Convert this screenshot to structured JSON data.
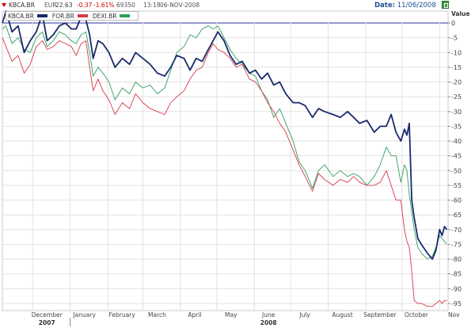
{
  "header": {
    "symbol": "KBCA.BR",
    "currency": "EUR",
    "last": "22.63",
    "change": "-0.37",
    "change_pct": "-1.61%",
    "volume": "69350",
    "time": "13:18",
    "date": "06-NOV-2008",
    "date_label": "Date:",
    "date_value": "11/06/2008",
    "down_color": "#cc0000"
  },
  "chart_data": {
    "type": "line",
    "title": "",
    "xlabel": "",
    "ylabel": "Value",
    "ylim": [
      -97,
      5
    ],
    "yticks": [
      0,
      -5,
      -10,
      -15,
      -20,
      -25,
      -30,
      -35,
      -40,
      -45,
      -50,
      -55,
      -60,
      -65,
      -70,
      -75,
      -80,
      -85,
      -90,
      -95
    ],
    "x_range": [
      "2007-11-06",
      "2008-11-08"
    ],
    "x_ticks": [
      {
        "label": "December",
        "date": "2007-12-01"
      },
      {
        "label": "January",
        "date": "2008-01-01"
      },
      {
        "label": "February",
        "date": "2008-02-01"
      },
      {
        "label": "March",
        "date": "2008-03-01"
      },
      {
        "label": "April",
        "date": "2008-04-01"
      },
      {
        "label": "May",
        "date": "2008-05-01"
      },
      {
        "label": "June",
        "date": "2008-06-01"
      },
      {
        "label": "July",
        "date": "2008-07-01"
      },
      {
        "label": "August",
        "date": "2008-08-01"
      },
      {
        "label": "September",
        "date": "2008-09-01"
      },
      {
        "label": "October",
        "date": "2008-10-01"
      },
      {
        "label": "Nov",
        "date": "2008-11-01"
      }
    ],
    "year_labels": [
      {
        "label": "2007",
        "date": "2007-12-01"
      },
      {
        "label": "2008",
        "date": "2008-06-01"
      }
    ],
    "grid": true,
    "legend_position": "top-left",
    "series": [
      {
        "name": "KBCA.BR",
        "color": "#1a2a6c",
        "points": [
          [
            "2007-11-06",
            0
          ],
          [
            "2007-11-09",
            4
          ],
          [
            "2007-11-14",
            -3
          ],
          [
            "2007-11-19",
            -1
          ],
          [
            "2007-11-24",
            -10
          ],
          [
            "2007-11-29",
            -6
          ],
          [
            "2007-12-04",
            -3
          ],
          [
            "2007-12-09",
            3
          ],
          [
            "2007-12-13",
            -6
          ],
          [
            "2007-12-18",
            -4
          ],
          [
            "2007-12-23",
            -1
          ],
          [
            "2007-12-28",
            0
          ],
          [
            "2008-01-02",
            -2
          ],
          [
            "2008-01-06",
            -2
          ],
          [
            "2008-01-10",
            2
          ],
          [
            "2008-01-14",
            1
          ],
          [
            "2008-01-17",
            -4
          ],
          [
            "2008-01-20",
            -12
          ],
          [
            "2008-01-24",
            -6
          ],
          [
            "2008-01-28",
            -7
          ],
          [
            "2008-02-02",
            -10
          ],
          [
            "2008-02-07",
            -15
          ],
          [
            "2008-02-13",
            -12
          ],
          [
            "2008-02-19",
            -14
          ],
          [
            "2008-02-24",
            -10
          ],
          [
            "2008-03-01",
            -12
          ],
          [
            "2008-03-07",
            -14
          ],
          [
            "2008-03-13",
            -17
          ],
          [
            "2008-03-19",
            -18
          ],
          [
            "2008-03-24",
            -15
          ],
          [
            "2008-03-29",
            -11
          ],
          [
            "2008-04-04",
            -12
          ],
          [
            "2008-04-09",
            -16
          ],
          [
            "2008-04-14",
            -12
          ],
          [
            "2008-04-19",
            -13
          ],
          [
            "2008-04-24",
            -9
          ],
          [
            "2008-04-28",
            -6
          ],
          [
            "2008-05-02",
            -3
          ],
          [
            "2008-05-07",
            -6
          ],
          [
            "2008-05-12",
            -11
          ],
          [
            "2008-05-17",
            -14
          ],
          [
            "2008-05-22",
            -13
          ],
          [
            "2008-05-28",
            -17
          ],
          [
            "2008-06-02",
            -16
          ],
          [
            "2008-06-07",
            -19
          ],
          [
            "2008-06-12",
            -17
          ],
          [
            "2008-06-17",
            -21
          ],
          [
            "2008-06-22",
            -20
          ],
          [
            "2008-06-27",
            -24
          ],
          [
            "2008-07-03",
            -27
          ],
          [
            "2008-07-08",
            -27
          ],
          [
            "2008-07-13",
            -28
          ],
          [
            "2008-07-19",
            -32
          ],
          [
            "2008-07-24",
            -29
          ],
          [
            "2008-07-29",
            -30
          ],
          [
            "2008-08-05",
            -31
          ],
          [
            "2008-08-11",
            -32
          ],
          [
            "2008-08-17",
            -30
          ],
          [
            "2008-08-22",
            -32
          ],
          [
            "2008-08-27",
            -34
          ],
          [
            "2008-09-02",
            -33
          ],
          [
            "2008-09-08",
            -37
          ],
          [
            "2008-09-13",
            -35
          ],
          [
            "2008-09-18",
            -35
          ],
          [
            "2008-09-22",
            -31
          ],
          [
            "2008-09-26",
            -37
          ],
          [
            "2008-09-30",
            -40
          ],
          [
            "2008-10-03",
            -36
          ],
          [
            "2008-10-05",
            -38
          ],
          [
            "2008-10-07",
            -34
          ],
          [
            "2008-10-09",
            -60
          ],
          [
            "2008-10-11",
            -66
          ],
          [
            "2008-10-14",
            -73
          ],
          [
            "2008-10-17",
            -75
          ],
          [
            "2008-10-22",
            -78
          ],
          [
            "2008-10-26",
            -80
          ],
          [
            "2008-10-29",
            -77
          ],
          [
            "2008-11-01",
            -70
          ],
          [
            "2008-11-03",
            -72
          ],
          [
            "2008-11-05",
            -69
          ],
          [
            "2008-11-07",
            -70
          ]
        ]
      },
      {
        "name": "FOR.BR",
        "color": "#d43a4a",
        "points": [
          [
            "2007-11-06",
            -5
          ],
          [
            "2007-11-09",
            -8
          ],
          [
            "2007-11-14",
            -13
          ],
          [
            "2007-11-19",
            -11
          ],
          [
            "2007-11-24",
            -17
          ],
          [
            "2007-11-29",
            -14
          ],
          [
            "2007-12-04",
            -8
          ],
          [
            "2007-12-09",
            -6
          ],
          [
            "2007-12-13",
            -9
          ],
          [
            "2007-12-18",
            -8
          ],
          [
            "2007-12-23",
            -6
          ],
          [
            "2007-12-28",
            -7
          ],
          [
            "2008-01-02",
            -8
          ],
          [
            "2008-01-06",
            -11
          ],
          [
            "2008-01-10",
            -7
          ],
          [
            "2008-01-14",
            -6
          ],
          [
            "2008-01-17",
            -15
          ],
          [
            "2008-01-20",
            -23
          ],
          [
            "2008-01-24",
            -19
          ],
          [
            "2008-01-28",
            -23
          ],
          [
            "2008-02-02",
            -26
          ],
          [
            "2008-02-07",
            -31
          ],
          [
            "2008-02-13",
            -27
          ],
          [
            "2008-02-19",
            -29
          ],
          [
            "2008-02-24",
            -24
          ],
          [
            "2008-03-01",
            -27
          ],
          [
            "2008-03-07",
            -29
          ],
          [
            "2008-03-13",
            -30
          ],
          [
            "2008-03-19",
            -31
          ],
          [
            "2008-03-24",
            -27
          ],
          [
            "2008-03-29",
            -25
          ],
          [
            "2008-04-04",
            -23
          ],
          [
            "2008-04-09",
            -19
          ],
          [
            "2008-04-14",
            -16
          ],
          [
            "2008-04-19",
            -15
          ],
          [
            "2008-04-24",
            -10
          ],
          [
            "2008-04-28",
            -7
          ],
          [
            "2008-05-02",
            -9
          ],
          [
            "2008-05-07",
            -10
          ],
          [
            "2008-05-12",
            -12
          ],
          [
            "2008-05-17",
            -15
          ],
          [
            "2008-05-22",
            -14
          ],
          [
            "2008-05-28",
            -19
          ],
          [
            "2008-06-02",
            -20
          ],
          [
            "2008-06-07",
            -23
          ],
          [
            "2008-06-12",
            -27
          ],
          [
            "2008-06-17",
            -30
          ],
          [
            "2008-06-22",
            -34
          ],
          [
            "2008-06-27",
            -37
          ],
          [
            "2008-07-03",
            -43
          ],
          [
            "2008-07-08",
            -48
          ],
          [
            "2008-07-13",
            -52
          ],
          [
            "2008-07-19",
            -57
          ],
          [
            "2008-07-24",
            -51
          ],
          [
            "2008-07-29",
            -53
          ],
          [
            "2008-08-05",
            -55
          ],
          [
            "2008-08-11",
            -53
          ],
          [
            "2008-08-17",
            -54
          ],
          [
            "2008-08-22",
            -52
          ],
          [
            "2008-08-27",
            -54
          ],
          [
            "2008-09-02",
            -55
          ],
          [
            "2008-09-08",
            -55
          ],
          [
            "2008-09-13",
            -54
          ],
          [
            "2008-09-18",
            -50
          ],
          [
            "2008-09-22",
            -55
          ],
          [
            "2008-09-26",
            -60
          ],
          [
            "2008-09-30",
            -60
          ],
          [
            "2008-10-03",
            -70
          ],
          [
            "2008-10-05",
            -74
          ],
          [
            "2008-10-07",
            -76
          ],
          [
            "2008-10-09",
            -84
          ],
          [
            "2008-10-11",
            -94
          ],
          [
            "2008-10-14",
            -95
          ],
          [
            "2008-10-17",
            -95
          ],
          [
            "2008-10-22",
            -96
          ],
          [
            "2008-10-26",
            -96
          ],
          [
            "2008-10-29",
            -95
          ],
          [
            "2008-11-01",
            -94
          ],
          [
            "2008-11-03",
            -95
          ],
          [
            "2008-11-05",
            -94
          ],
          [
            "2008-11-07",
            -94
          ]
        ]
      },
      {
        "name": "DEXI.BR",
        "color": "#2e9e5e",
        "points": [
          [
            "2007-11-06",
            -2
          ],
          [
            "2007-11-09",
            -1
          ],
          [
            "2007-11-14",
            -7
          ],
          [
            "2007-11-19",
            -5
          ],
          [
            "2007-11-24",
            -9
          ],
          [
            "2007-11-29",
            -10
          ],
          [
            "2007-12-04",
            -5
          ],
          [
            "2007-12-09",
            -3
          ],
          [
            "2007-12-13",
            -8
          ],
          [
            "2007-12-18",
            -6
          ],
          [
            "2007-12-23",
            -3
          ],
          [
            "2007-12-28",
            -4
          ],
          [
            "2008-01-02",
            -6
          ],
          [
            "2008-01-06",
            -7
          ],
          [
            "2008-01-10",
            -4
          ],
          [
            "2008-01-14",
            -3
          ],
          [
            "2008-01-17",
            -10
          ],
          [
            "2008-01-20",
            -18
          ],
          [
            "2008-01-24",
            -15
          ],
          [
            "2008-01-28",
            -17
          ],
          [
            "2008-02-02",
            -20
          ],
          [
            "2008-02-07",
            -26
          ],
          [
            "2008-02-13",
            -22
          ],
          [
            "2008-02-19",
            -24
          ],
          [
            "2008-02-24",
            -20
          ],
          [
            "2008-03-01",
            -22
          ],
          [
            "2008-03-07",
            -21
          ],
          [
            "2008-03-13",
            -24
          ],
          [
            "2008-03-19",
            -22
          ],
          [
            "2008-03-24",
            -16
          ],
          [
            "2008-03-29",
            -10
          ],
          [
            "2008-04-04",
            -8
          ],
          [
            "2008-04-09",
            -4
          ],
          [
            "2008-04-14",
            -5
          ],
          [
            "2008-04-19",
            -2
          ],
          [
            "2008-04-24",
            -1
          ],
          [
            "2008-04-28",
            -2
          ],
          [
            "2008-05-02",
            -1
          ],
          [
            "2008-05-07",
            -5
          ],
          [
            "2008-05-12",
            -9
          ],
          [
            "2008-05-17",
            -12
          ],
          [
            "2008-05-22",
            -14
          ],
          [
            "2008-05-28",
            -17
          ],
          [
            "2008-06-02",
            -18
          ],
          [
            "2008-06-07",
            -23
          ],
          [
            "2008-06-12",
            -26
          ],
          [
            "2008-06-17",
            -32
          ],
          [
            "2008-06-22",
            -29
          ],
          [
            "2008-06-27",
            -34
          ],
          [
            "2008-07-03",
            -40
          ],
          [
            "2008-07-08",
            -47
          ],
          [
            "2008-07-13",
            -50
          ],
          [
            "2008-07-19",
            -56
          ],
          [
            "2008-07-24",
            -50
          ],
          [
            "2008-07-29",
            -48
          ],
          [
            "2008-08-05",
            -52
          ],
          [
            "2008-08-11",
            -50
          ],
          [
            "2008-08-17",
            -52
          ],
          [
            "2008-08-22",
            -51
          ],
          [
            "2008-08-27",
            -52
          ],
          [
            "2008-09-02",
            -55
          ],
          [
            "2008-09-08",
            -52
          ],
          [
            "2008-09-13",
            -48
          ],
          [
            "2008-09-18",
            -42
          ],
          [
            "2008-09-22",
            -45
          ],
          [
            "2008-09-26",
            -45
          ],
          [
            "2008-09-30",
            -54
          ],
          [
            "2008-10-03",
            -48
          ],
          [
            "2008-10-05",
            -50
          ],
          [
            "2008-10-07",
            -58
          ],
          [
            "2008-10-09",
            -64
          ],
          [
            "2008-10-11",
            -70
          ],
          [
            "2008-10-14",
            -76
          ],
          [
            "2008-10-17",
            -78
          ],
          [
            "2008-10-22",
            -80
          ],
          [
            "2008-10-26",
            -79
          ],
          [
            "2008-10-29",
            -76
          ],
          [
            "2008-11-01",
            -72
          ],
          [
            "2008-11-03",
            -73
          ],
          [
            "2008-11-05",
            -74
          ],
          [
            "2008-11-07",
            -75
          ]
        ]
      }
    ]
  }
}
